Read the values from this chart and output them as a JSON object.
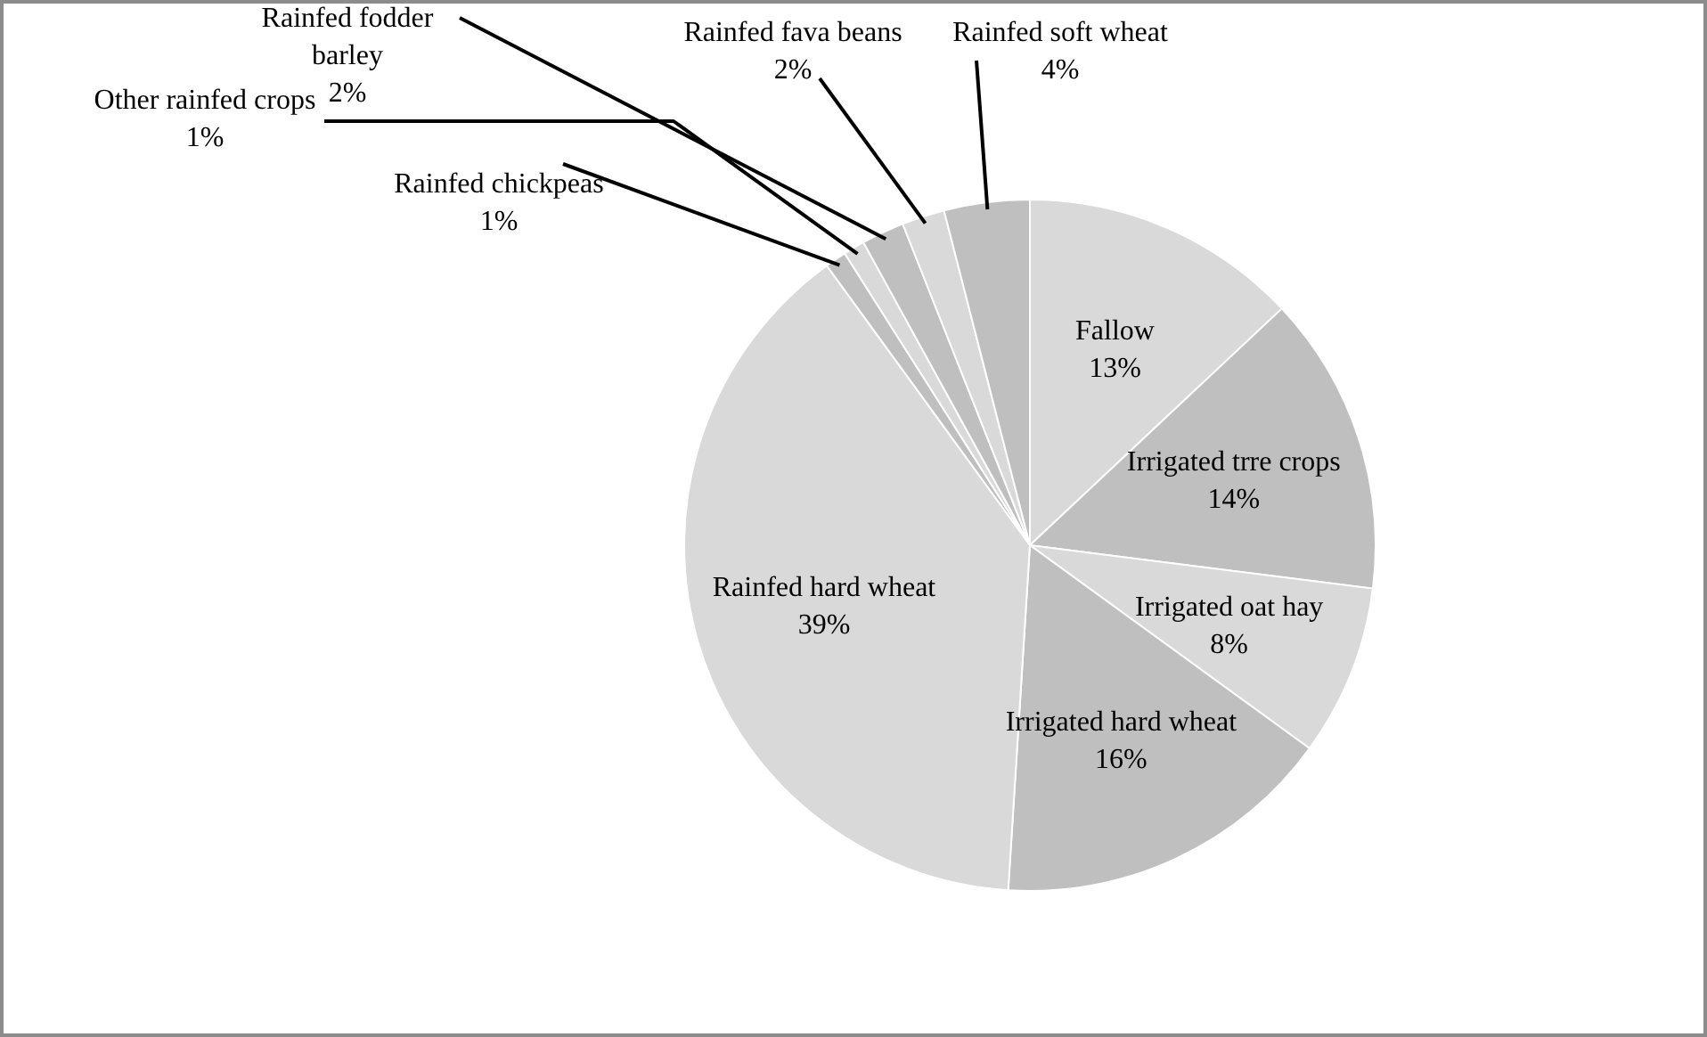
{
  "chart_data": {
    "type": "pie",
    "categories": [
      "Fallow",
      "Irrigated trre crops",
      "Irrigated oat hay",
      "Irrigated hard wheat",
      "Rainfed hard wheat",
      "Rainfed chickpeas",
      "Other rainfed crops",
      "Rainfed fodder barley",
      "Rainfed fava beans",
      "Rainfed soft wheat"
    ],
    "values": [
      13,
      14,
      8,
      16,
      39,
      1,
      1,
      2,
      2,
      4
    ],
    "value_labels": [
      "13%",
      "14%",
      "8%",
      "16%",
      "39%",
      "1%",
      "1%",
      "2%",
      "2%",
      "4%"
    ],
    "colors": [
      "#d9d9d9",
      "#bfbfbf",
      "#d9d9d9",
      "#bfbfbf",
      "#d9d9d9",
      "#bfbfbf",
      "#d9d9d9",
      "#bfbfbf",
      "#d9d9d9",
      "#bfbfbf"
    ]
  }
}
